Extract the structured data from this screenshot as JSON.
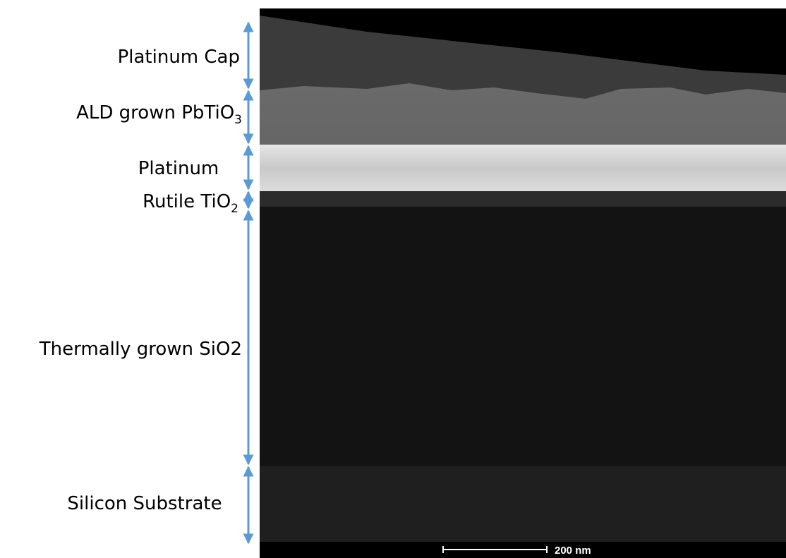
{
  "labels": [
    {
      "text": "Platinum Cap"
    },
    {
      "text": "ALD grown PbTiO",
      "subscript": "3"
    },
    {
      "text": "Platinum"
    },
    {
      "text": "Rutile TiO",
      "subscript": "2"
    },
    {
      "text": "Thermally grown SiO2"
    },
    {
      "text": "Silicon Substrate"
    }
  ],
  "scale_bar": {
    "label": "200 nm"
  }
}
